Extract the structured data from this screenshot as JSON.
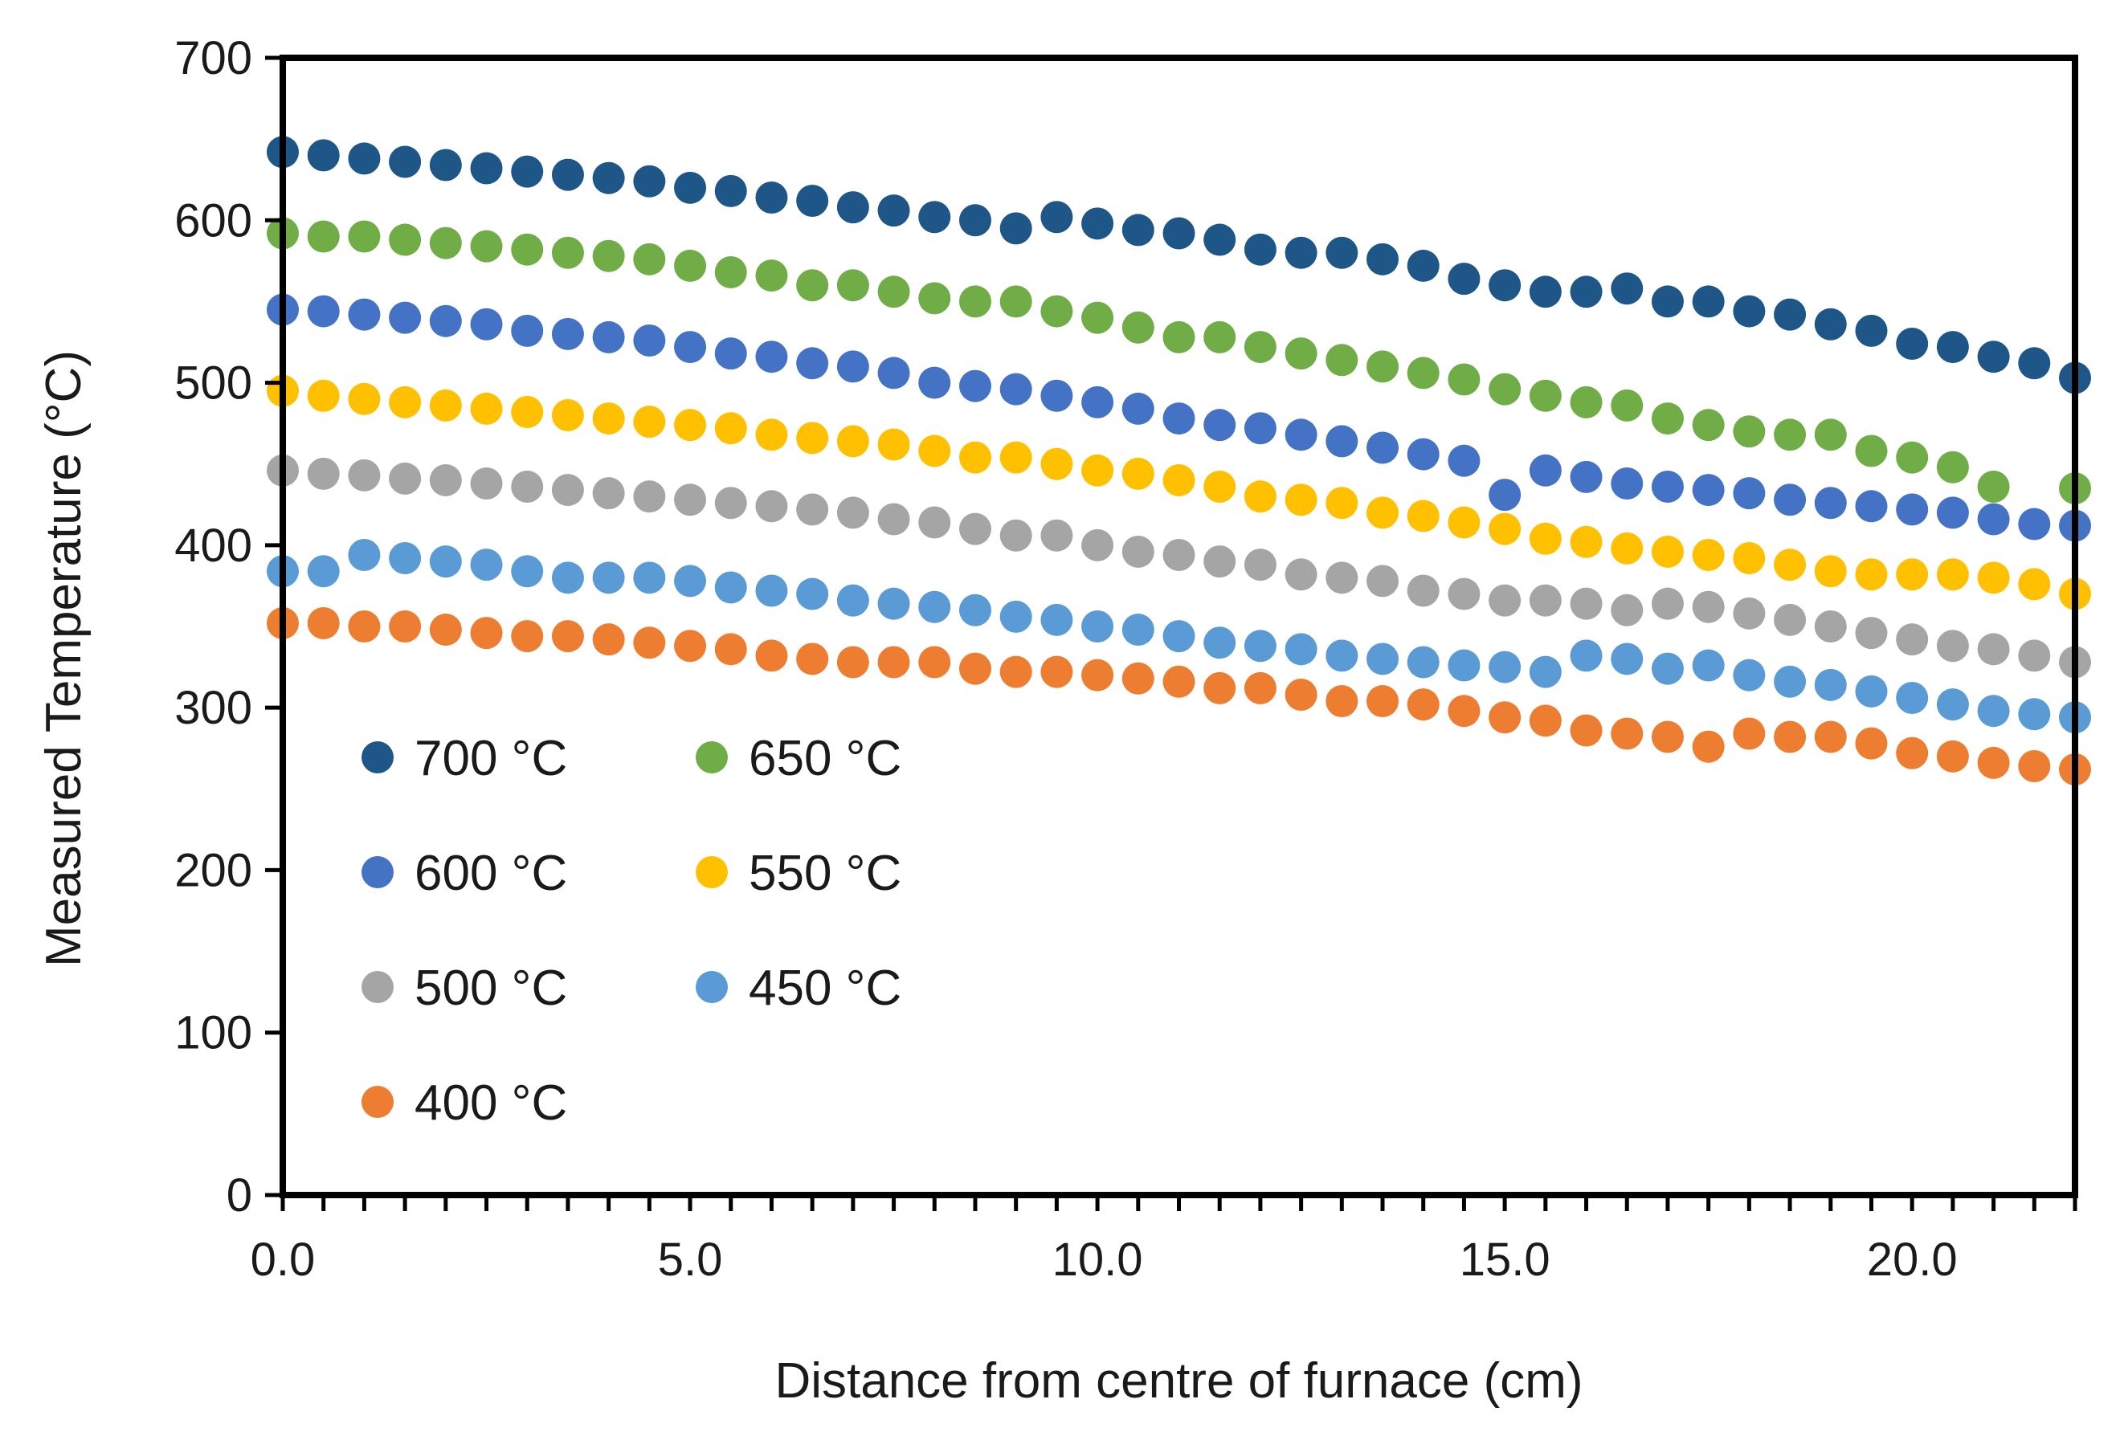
{
  "chart_data": {
    "type": "scatter",
    "title": "",
    "xlabel": "Distance from centre of furnace (cm)",
    "ylabel": "Measured Temperature (°C)",
    "xlim": [
      0,
      22
    ],
    "ylim": [
      0,
      700
    ],
    "x_ticks": [
      0,
      5,
      10,
      15,
      20
    ],
    "x_tick_labels": [
      "0.0",
      "5.0",
      "10.0",
      "15.0",
      "20.0"
    ],
    "y_ticks": [
      0,
      100,
      200,
      300,
      400,
      500,
      600,
      700
    ],
    "y_tick_labels": [
      "0",
      "100",
      "200",
      "300",
      "400",
      "500",
      "600",
      "700"
    ],
    "legend_position": "lower-left",
    "x": [
      0.0,
      0.5,
      1.0,
      1.5,
      2.0,
      2.5,
      3.0,
      3.5,
      4.0,
      4.5,
      5.0,
      5.5,
      6.0,
      6.5,
      7.0,
      7.5,
      8.0,
      8.5,
      9.0,
      9.5,
      10.0,
      10.5,
      11.0,
      11.5,
      12.0,
      12.5,
      13.0,
      13.5,
      14.0,
      14.5,
      15.0,
      15.5,
      16.0,
      16.5,
      17.0,
      17.5,
      18.0,
      18.5,
      19.0,
      19.5,
      20.0,
      20.5,
      21.0,
      21.5,
      22.0
    ],
    "series": [
      {
        "name": "700 °C",
        "color": "#1f5688",
        "values": [
          642,
          640,
          638,
          636,
          634,
          632,
          630,
          628,
          626,
          624,
          620,
          618,
          614,
          612,
          608,
          606,
          602,
          600,
          595,
          602,
          598,
          594,
          592,
          588,
          582,
          580,
          580,
          576,
          572,
          564,
          560,
          556,
          556,
          558,
          550,
          550,
          544,
          542,
          536,
          532,
          524,
          522,
          516,
          512,
          503
        ]
      },
      {
        "name": "650 °C",
        "color": "#70ad47",
        "values": [
          592,
          590,
          590,
          588,
          586,
          584,
          582,
          580,
          578,
          576,
          572,
          568,
          566,
          560,
          560,
          556,
          552,
          550,
          550,
          544,
          540,
          534,
          528,
          528,
          522,
          518,
          514,
          510,
          506,
          502,
          496,
          492,
          488,
          486,
          478,
          474,
          470,
          468,
          468,
          458,
          454,
          448,
          436,
          null,
          435
        ]
      },
      {
        "name": "600 °C",
        "color": "#4472c4",
        "values": [
          545,
          544,
          542,
          540,
          538,
          536,
          532,
          530,
          528,
          526,
          522,
          518,
          516,
          512,
          510,
          506,
          500,
          498,
          496,
          492,
          488,
          484,
          478,
          474,
          472,
          468,
          464,
          460,
          456,
          452,
          431,
          446,
          442,
          438,
          436,
          434,
          432,
          428,
          426,
          424,
          422,
          420,
          416,
          413,
          412
        ]
      },
      {
        "name": "550 °C",
        "color": "#ffc000",
        "values": [
          495,
          492,
          490,
          488,
          486,
          484,
          482,
          480,
          478,
          476,
          474,
          472,
          468,
          466,
          464,
          462,
          458,
          454,
          454,
          450,
          446,
          444,
          440,
          436,
          430,
          428,
          426,
          420,
          418,
          414,
          410,
          404,
          402,
          398,
          396,
          394,
          392,
          388,
          384,
          382,
          382,
          382,
          380,
          376,
          370
        ]
      },
      {
        "name": "500 °C",
        "color": "#a5a5a5",
        "values": [
          446,
          444,
          443,
          441,
          440,
          438,
          436,
          434,
          432,
          430,
          428,
          426,
          424,
          422,
          420,
          416,
          414,
          410,
          406,
          406,
          400,
          396,
          394,
          390,
          388,
          382,
          380,
          378,
          372,
          370,
          366,
          366,
          364,
          360,
          364,
          362,
          358,
          354,
          350,
          346,
          342,
          338,
          336,
          332,
          328
        ]
      },
      {
        "name": "450 °C",
        "color": "#5b9bd5",
        "values": [
          384,
          384,
          394,
          392,
          390,
          388,
          384,
          380,
          380,
          380,
          378,
          374,
          372,
          370,
          366,
          364,
          362,
          360,
          356,
          354,
          350,
          348,
          344,
          340,
          338,
          336,
          332,
          330,
          328,
          326,
          325,
          322,
          332,
          330,
          324,
          326,
          320,
          316,
          314,
          310,
          306,
          302,
          298,
          296,
          294
        ]
      },
      {
        "name": "400 °C",
        "color": "#ed7d31",
        "values": [
          352,
          352,
          350,
          350,
          348,
          346,
          344,
          344,
          342,
          340,
          338,
          336,
          332,
          330,
          328,
          328,
          328,
          324,
          322,
          322,
          320,
          318,
          316,
          312,
          312,
          308,
          304,
          304,
          302,
          298,
          294,
          292,
          286,
          284,
          282,
          276,
          284,
          282,
          282,
          278,
          272,
          270,
          266,
          264,
          262
        ]
      }
    ]
  }
}
